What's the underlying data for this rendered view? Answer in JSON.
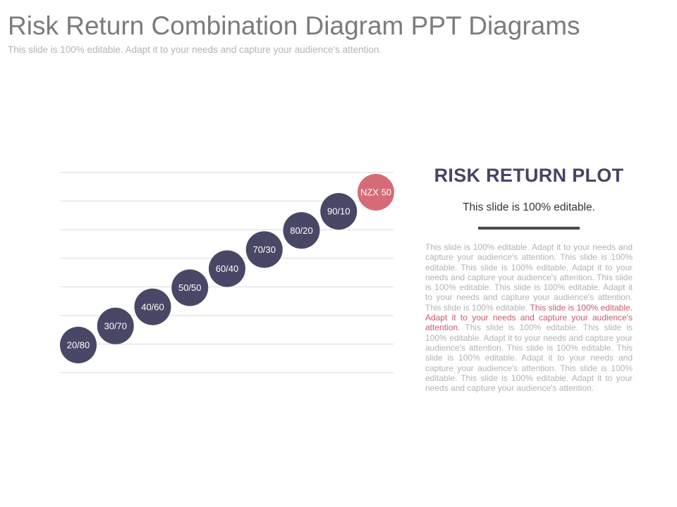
{
  "header": {
    "title": "Risk Return Combination Diagram PPT Diagrams",
    "subtitle": "This slide is 100% editable. Adapt it to your needs and capture your audience's attention."
  },
  "diagram": {
    "colors": {
      "primary": "#494766",
      "accent": "#d66b78",
      "gridline": "#d9d9d9"
    },
    "points": [
      {
        "label": "20/80",
        "highlighted": false
      },
      {
        "label": "30/70",
        "highlighted": false
      },
      {
        "label": "40/60",
        "highlighted": false
      },
      {
        "label": "50/50",
        "highlighted": false
      },
      {
        "label": "60/40",
        "highlighted": false
      },
      {
        "label": "70/30",
        "highlighted": false
      },
      {
        "label": "80/20",
        "highlighted": false
      },
      {
        "label": "90/10",
        "highlighted": false
      },
      {
        "label": "NZX 50",
        "highlighted": true
      }
    ]
  },
  "panel": {
    "heading": "RISK RETURN PLOT",
    "subheading": "This slide is 100% editable.",
    "body_before": "This slide is 100% editable. Adapt it to your needs and capture your audience's attention. This slide is 100% editable. This slide is 100% editable. Adapt it to your needs and capture your audience's attention. This slide is 100% editable. This slide is 100% editable. Adapt it to your needs and capture your audience's attention. This slide is 100% editable.",
    "body_highlight": " This slide is 100% editable. Adapt it to your needs and capture your audience's attention.",
    "body_after": " This slide is 100% editable. This slide is 100% editable. Adapt it to your needs and capture your audience's attention. This slide is 100% editable. This slide is 100% editable. Adapt it to your needs and capture your audience's attention. This slide is 100% editable. This slide is 100% editable. Adapt it to your needs and capture your audience's attention."
  }
}
